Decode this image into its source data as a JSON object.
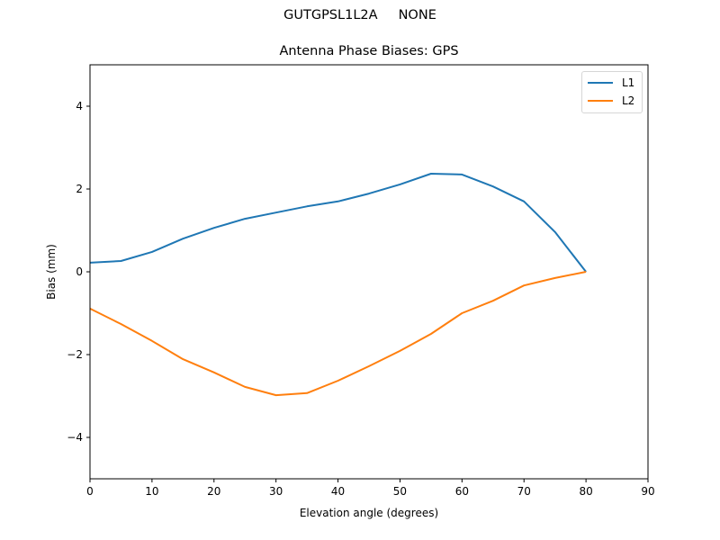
{
  "figure": {
    "suptitle": "GUTGPSL1L2A     NONE",
    "title": "Antenna Phase Biases: GPS",
    "xlabel": "Elevation angle (degrees)",
    "ylabel": "Bias (mm)",
    "xticks": [
      "0",
      "10",
      "20",
      "30",
      "40",
      "50",
      "60",
      "70",
      "80",
      "90"
    ],
    "yticks": [
      "−4",
      "−2",
      "0",
      "2",
      "4"
    ],
    "legend": [
      {
        "label": "L1",
        "color": "#1f77b4"
      },
      {
        "label": "L2",
        "color": "#ff7f0e"
      }
    ]
  },
  "chart_data": {
    "type": "line",
    "title": "Antenna Phase Biases: GPS",
    "suptitle": "GUTGPSL1L2A     NONE",
    "xlabel": "Elevation angle (degrees)",
    "ylabel": "Bias (mm)",
    "xlim": [
      0,
      90
    ],
    "ylim": [
      -5,
      5
    ],
    "xticks": [
      0,
      10,
      20,
      30,
      40,
      50,
      60,
      70,
      80,
      90
    ],
    "yticks": [
      -4,
      -2,
      0,
      2,
      4
    ],
    "grid": false,
    "legend_position": "upper right",
    "x": [
      0,
      5,
      10,
      15,
      20,
      25,
      30,
      35,
      40,
      45,
      50,
      55,
      60,
      65,
      70,
      75,
      80
    ],
    "series": [
      {
        "name": "L1",
        "color": "#1f77b4",
        "values": [
          0.22,
          0.26,
          0.48,
          0.8,
          1.06,
          1.28,
          1.43,
          1.58,
          1.7,
          1.89,
          2.11,
          2.37,
          2.35,
          2.06,
          1.7,
          0.96,
          0.0
        ]
      },
      {
        "name": "L2",
        "color": "#ff7f0e",
        "values": [
          -0.89,
          -1.26,
          -1.67,
          -2.11,
          -2.43,
          -2.78,
          -2.98,
          -2.93,
          -2.63,
          -2.28,
          -1.91,
          -1.5,
          -1.0,
          -0.7,
          -0.33,
          -0.15,
          0.0
        ]
      }
    ]
  }
}
